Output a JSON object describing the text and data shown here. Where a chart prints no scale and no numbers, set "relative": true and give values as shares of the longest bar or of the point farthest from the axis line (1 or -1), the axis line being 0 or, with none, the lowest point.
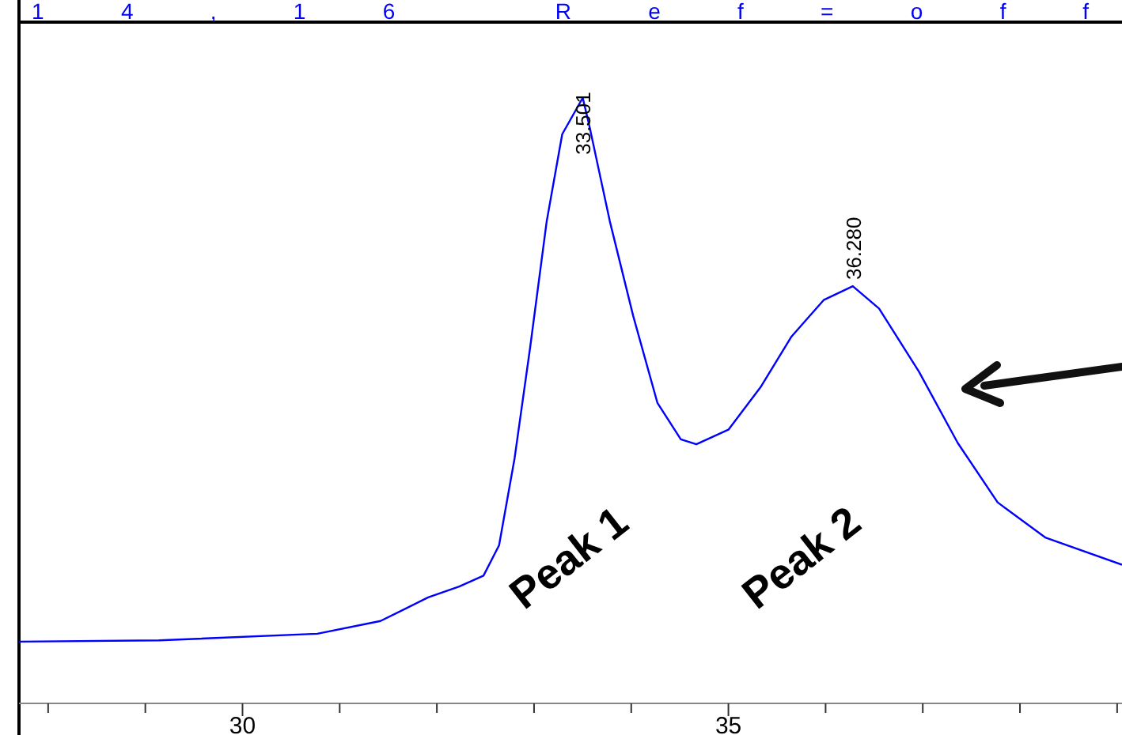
{
  "chart_data": {
    "type": "line",
    "title": "14,16 Ref=off",
    "relative": true,
    "tick_labels": "x",
    "line_style": "solid",
    "x": [
      27.7,
      29.14,
      30.77,
      31.42,
      31.91,
      32.23,
      32.48,
      32.64,
      32.8,
      32.96,
      33.13,
      33.29,
      33.501,
      33.57,
      33.78,
      34.02,
      34.27,
      34.51,
      34.67,
      35.0,
      35.33,
      35.65,
      35.98,
      36.28,
      36.55,
      36.96,
      37.36,
      37.77,
      38.26,
      39.05
    ],
    "series": [
      {
        "color": "#0000ff",
        "values": [
          0.102,
          0.104,
          0.115,
          0.136,
          0.175,
          0.193,
          0.211,
          0.261,
          0.405,
          0.588,
          0.796,
          0.94,
          1.0,
          0.953,
          0.796,
          0.64,
          0.496,
          0.436,
          0.428,
          0.452,
          0.522,
          0.606,
          0.666,
          0.689,
          0.652,
          0.548,
          0.43,
          0.332,
          0.274,
          0.229
        ]
      }
    ],
    "xlim": [
      27.7,
      39.05
    ],
    "xticks": [
      {
        "value": 28,
        "label": null
      },
      {
        "value": 29,
        "label": null
      },
      30,
      {
        "value": 31,
        "label": null
      },
      {
        "value": 32,
        "label": null
      },
      {
        "value": 33,
        "label": null
      },
      {
        "value": 34,
        "label": null
      },
      35,
      {
        "value": 36,
        "label": null
      },
      {
        "value": 37,
        "label": null
      },
      {
        "value": 38,
        "label": null
      },
      {
        "value": 39,
        "label": null
      }
    ],
    "annotations": [
      {
        "text": "33.501",
        "x": 33.501,
        "y": 1.0
      },
      {
        "text": "36.280",
        "x": 36.28,
        "y": 0.689
      },
      "Peak 1",
      "Peak 2"
    ]
  }
}
